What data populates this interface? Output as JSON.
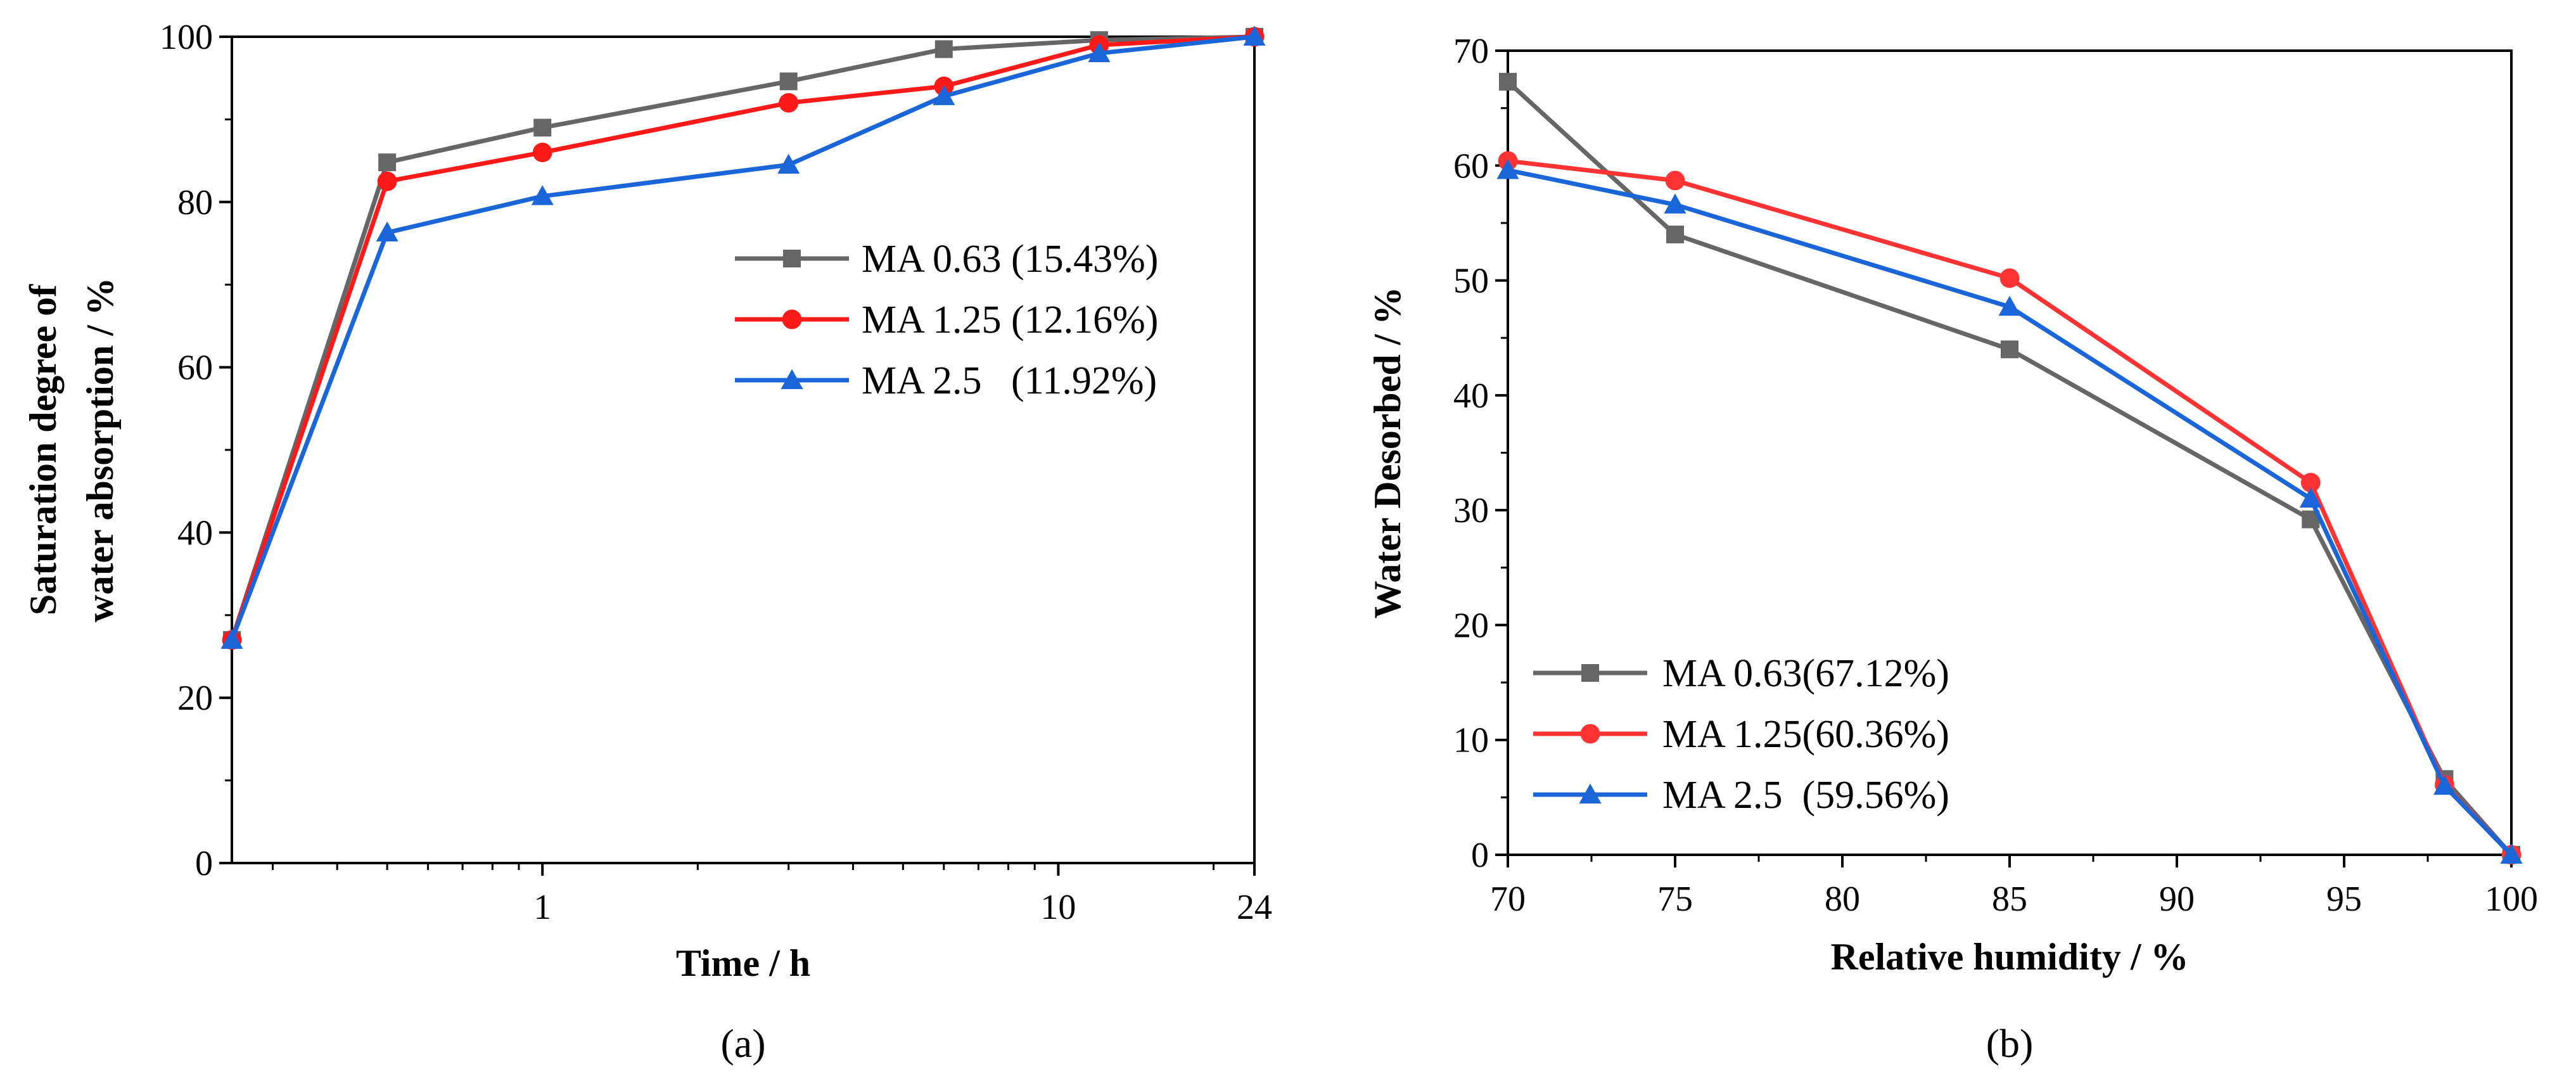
{
  "chart_data": [
    {
      "type": "line",
      "panel_label": "(a)",
      "xlabel": "Time / h",
      "ylabel_lines": [
        "Saturation degree of",
        "water absorption / %"
      ],
      "x_scale": "log",
      "xlim": [
        0.25,
        24
      ],
      "ylim": [
        0,
        100
      ],
      "x_ticks": [
        1,
        10,
        24
      ],
      "x_tick_labels": [
        "1",
        "10",
        "24"
      ],
      "y_ticks": [
        0,
        20,
        40,
        60,
        80,
        100
      ],
      "y_tick_labels": [
        "0",
        "20",
        "40",
        "60",
        "80",
        "100"
      ],
      "legend_position": "right-center",
      "series": [
        {
          "name": "MA 0.63 (15.43%)",
          "color": "#666666",
          "marker": "square",
          "x": [
            0.25,
            0.5,
            1,
            3,
            6,
            12,
            24
          ],
          "y": [
            27,
            84.8,
            89,
            94.6,
            98.5,
            99.6,
            100
          ]
        },
        {
          "name": "MA 1.25 (12.16%)",
          "color": "#ff1a1a",
          "marker": "circle",
          "x": [
            0.25,
            0.5,
            1,
            3,
            6,
            12,
            24
          ],
          "y": [
            27,
            82.5,
            86,
            92,
            94,
            99,
            100
          ]
        },
        {
          "name": "MA 2.5   (11.92%)",
          "color": "#1a66d9",
          "marker": "triangle",
          "x": [
            0.25,
            0.5,
            1,
            3,
            6,
            12,
            24
          ],
          "y": [
            27,
            76.3,
            80.7,
            84.5,
            92.8,
            98,
            100
          ]
        }
      ]
    },
    {
      "type": "line",
      "panel_label": "(b)",
      "xlabel": "Relative humidity / %",
      "ylabel_lines": [
        "Water Desorbed / %"
      ],
      "x_scale": "linear",
      "xlim": [
        70,
        100
      ],
      "ylim": [
        0,
        70
      ],
      "x_ticks": [
        70,
        75,
        80,
        85,
        90,
        95,
        100
      ],
      "x_tick_labels": [
        "70",
        "75",
        "80",
        "85",
        "90",
        "95",
        "100"
      ],
      "y_ticks": [
        0,
        10,
        20,
        30,
        40,
        50,
        60,
        70
      ],
      "y_tick_labels": [
        "0",
        "10",
        "20",
        "30",
        "40",
        "50",
        "60",
        "70"
      ],
      "legend_position": "bottom-left",
      "series": [
        {
          "name": "MA 0.63(67.12%)",
          "color": "#666666",
          "marker": "square",
          "x": [
            70,
            75,
            85,
            94,
            98,
            100
          ],
          "y": [
            67.3,
            54,
            44,
            29.2,
            6.6,
            0
          ]
        },
        {
          "name": "MA 1.25(60.36%)",
          "color": "#ff3333",
          "marker": "circle",
          "x": [
            70,
            75,
            85,
            94,
            98,
            100
          ],
          "y": [
            60.4,
            58.7,
            50.2,
            32.4,
            6.1,
            0
          ]
        },
        {
          "name": "MA 2.5  (59.56%)",
          "color": "#1a66d9",
          "marker": "triangle",
          "x": [
            70,
            75,
            85,
            94,
            98,
            100
          ],
          "y": [
            59.6,
            56.6,
            47.7,
            31,
            6,
            0
          ]
        }
      ]
    }
  ]
}
